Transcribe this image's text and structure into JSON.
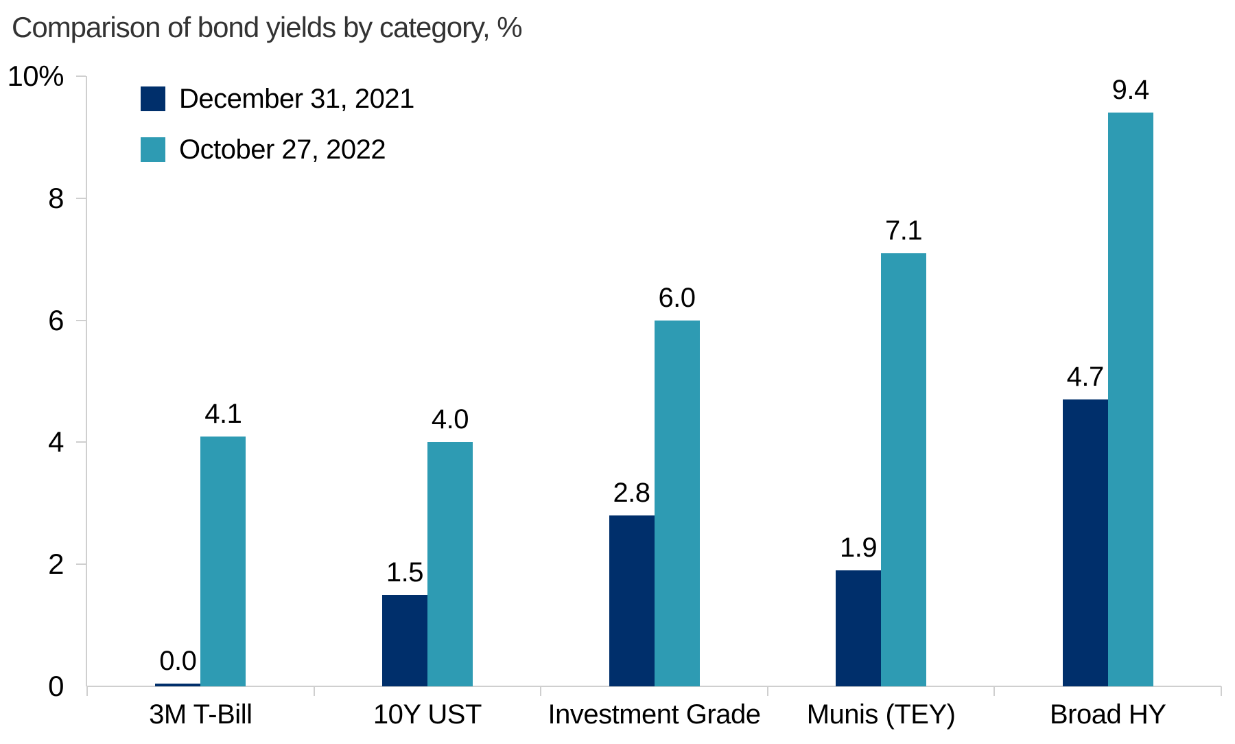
{
  "title": "Comparison of bond yields by category, %",
  "chart_data": {
    "type": "bar",
    "title": "Comparison of bond yields by category, %",
    "categories": [
      "3M T-Bill",
      "10Y UST",
      "Investment Grade",
      "Munis (TEY)",
      "Broad HY"
    ],
    "series": [
      {
        "name": "December 31, 2021",
        "color": "#002F6B",
        "values": [
          0.0,
          1.5,
          2.8,
          1.9,
          4.7
        ],
        "value_labels": [
          "0.0",
          "1.5",
          "2.8",
          "1.9",
          "4.7"
        ]
      },
      {
        "name": "October 27, 2022",
        "color": "#2E9BB3",
        "values": [
          4.1,
          4.0,
          6.0,
          7.1,
          9.4
        ],
        "value_labels": [
          "4.1",
          "4.0",
          "6.0",
          "7.1",
          "9.4"
        ]
      }
    ],
    "xlabel": "",
    "ylabel": "",
    "ylim": [
      0,
      10
    ],
    "yticks": [
      {
        "value": 10,
        "label": "10%"
      },
      {
        "value": 8,
        "label": "8"
      },
      {
        "value": 6,
        "label": "6"
      },
      {
        "value": 4,
        "label": "4"
      },
      {
        "value": 2,
        "label": "2"
      },
      {
        "value": 0,
        "label": "0"
      }
    ],
    "grid": false,
    "legend_position": "top-left-inside"
  },
  "colors": {
    "series_1": "#002F6B",
    "series_2": "#2E9BB3",
    "axis": "#CFCFCF",
    "text": "#000000",
    "title_text": "#333333",
    "background": "#FFFFFF"
  }
}
